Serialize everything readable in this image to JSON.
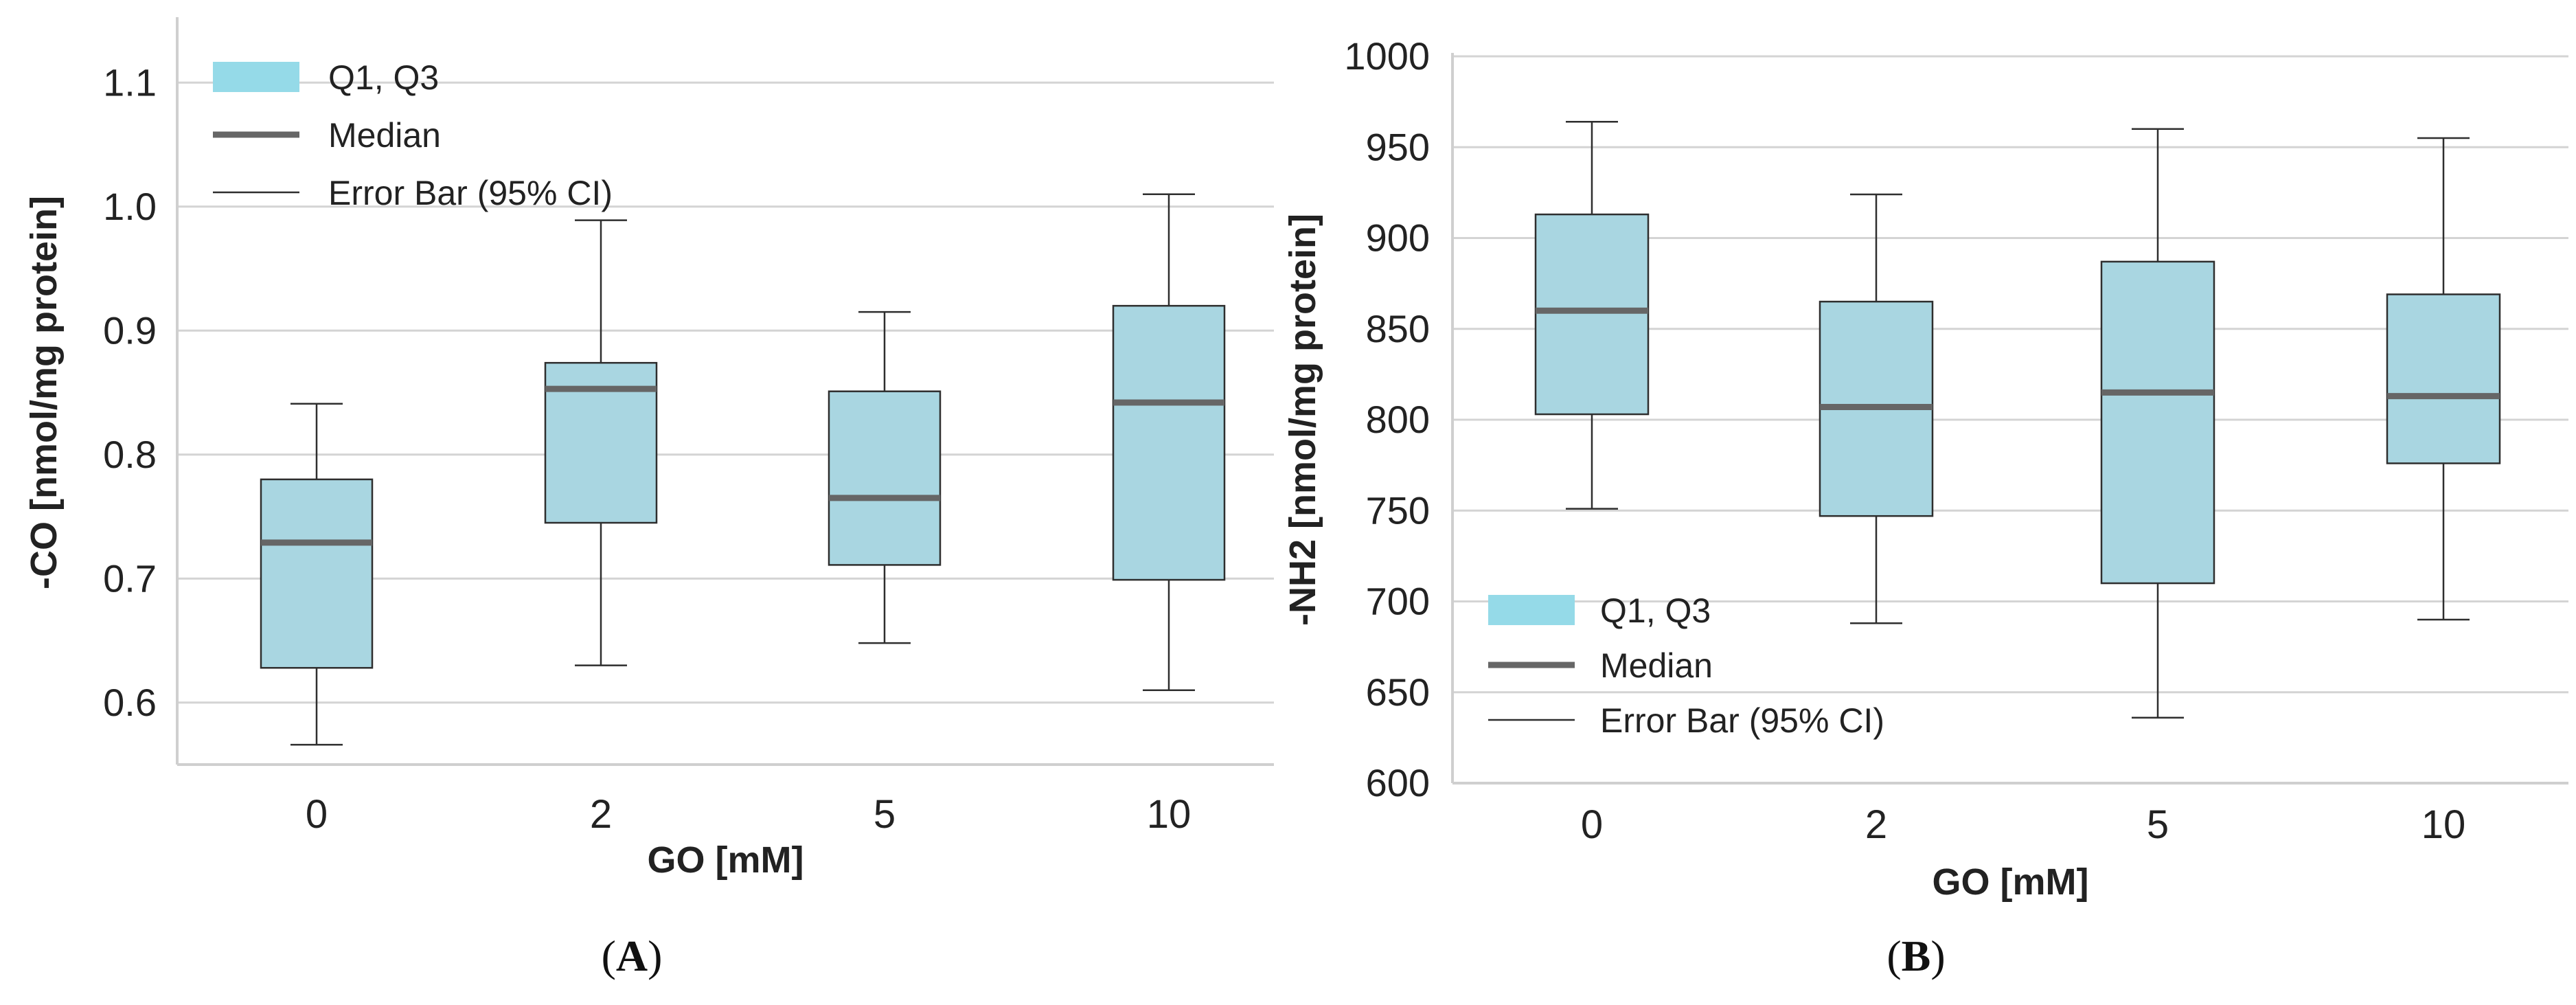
{
  "colors": {
    "box_fill": "#a9d6e1",
    "box_stroke": "#2e2e2e",
    "median": "#666666",
    "whisker": "#2e2e2e",
    "grid": "#d4d4d4",
    "axis": "#cfcfcf",
    "legend_box": "#95dae8",
    "text": "#222222"
  },
  "chart_data": [
    {
      "type": "box",
      "panel_label": "(A)",
      "panel_letter": "A",
      "xlabel": "GO [mM]",
      "ylabel": "-CO [nmol/mg protein]",
      "categories": [
        "0",
        "2",
        "5",
        "10"
      ],
      "ylim": [
        0.55,
        1.15
      ],
      "yticks": [
        0.6,
        0.7,
        0.8,
        0.9,
        1.0,
        1.1
      ],
      "ytick_labels": [
        "0.6",
        "0.7",
        "0.8",
        "0.9",
        "1.0",
        "1.1"
      ],
      "legend_position": "top-left",
      "legend": [
        "Q1, Q3",
        "Median",
        "Error Bar (95% CI)"
      ],
      "boxes": [
        {
          "category": "0",
          "whisker_low": 0.566,
          "q1": 0.628,
          "median": 0.729,
          "q3": 0.78,
          "whisker_high": 0.841
        },
        {
          "category": "2",
          "whisker_low": 0.63,
          "q1": 0.745,
          "median": 0.853,
          "q3": 0.874,
          "whisker_high": 0.989
        },
        {
          "category": "5",
          "whisker_low": 0.648,
          "q1": 0.711,
          "median": 0.765,
          "q3": 0.851,
          "whisker_high": 0.915
        },
        {
          "category": "10",
          "whisker_low": 0.61,
          "q1": 0.699,
          "median": 0.842,
          "q3": 0.92,
          "whisker_high": 1.01
        }
      ]
    },
    {
      "type": "box",
      "panel_label": "(B)",
      "panel_letter": "B",
      "xlabel": "GO [mM]",
      "ylabel": "-NH2 [nmol/mg protein]",
      "categories": [
        "0",
        "2",
        "5",
        "10"
      ],
      "ylim": [
        600,
        1000
      ],
      "yticks": [
        600,
        650,
        700,
        750,
        800,
        850,
        900,
        950,
        1000
      ],
      "ytick_labels": [
        "600",
        "650",
        "700",
        "750",
        "800",
        "850",
        "900",
        "950",
        "1000"
      ],
      "legend_position": "bottom-left",
      "legend": [
        "Q1, Q3",
        "Median",
        "Error Bar (95% CI)"
      ],
      "boxes": [
        {
          "category": "0",
          "whisker_low": 751,
          "q1": 803,
          "median": 860,
          "q3": 913,
          "whisker_high": 964
        },
        {
          "category": "2",
          "whisker_low": 688,
          "q1": 747,
          "median": 807,
          "q3": 865,
          "whisker_high": 924
        },
        {
          "category": "5",
          "whisker_low": 636,
          "q1": 710,
          "median": 815,
          "q3": 887,
          "whisker_high": 960
        },
        {
          "category": "10",
          "whisker_low": 690,
          "q1": 776,
          "median": 813,
          "q3": 869,
          "whisker_high": 955
        }
      ]
    }
  ]
}
